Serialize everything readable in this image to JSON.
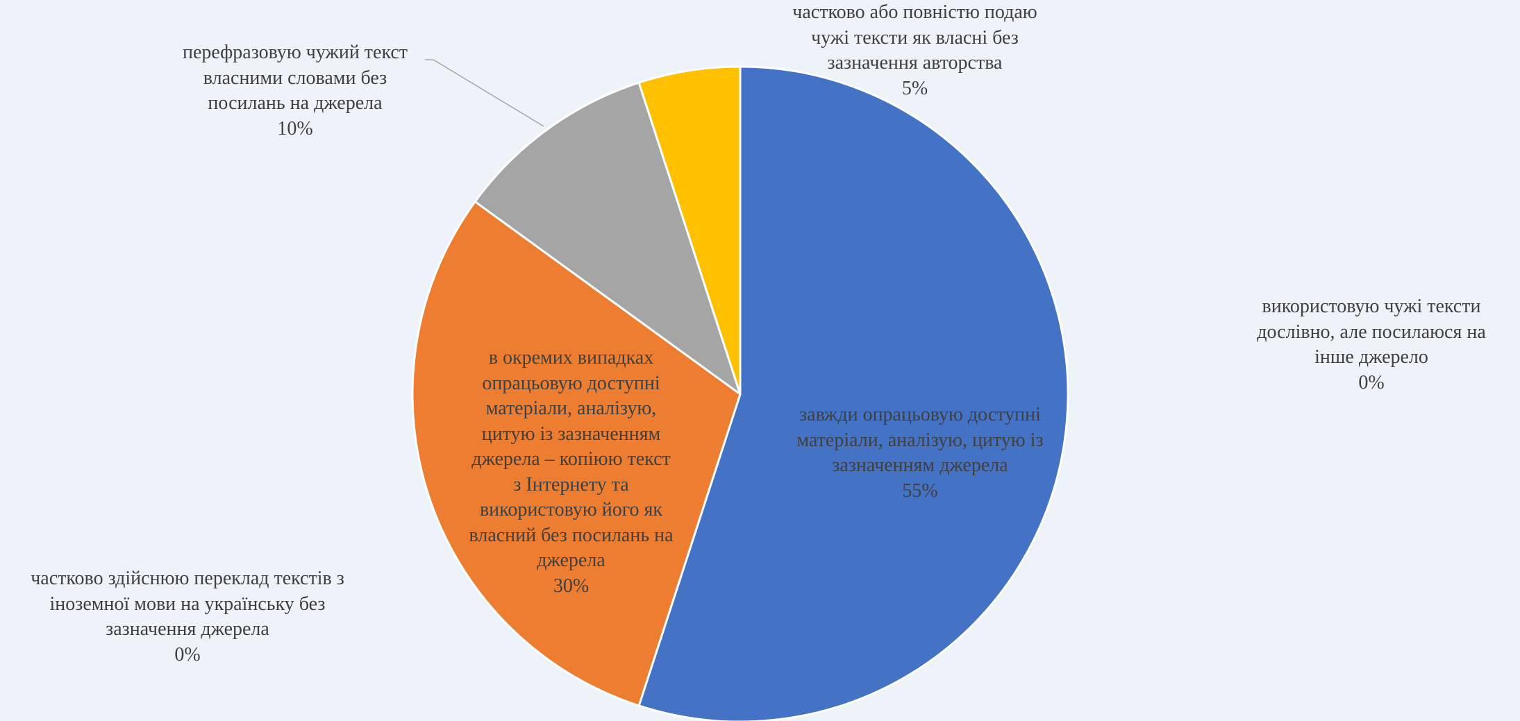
{
  "chart_data": {
    "type": "pie",
    "title": "",
    "slices": [
      {
        "label": "завжди опрацьовую доступні\nматеріали, аналізую, цитую із\nзазначенням джерела",
        "value": 55,
        "value_label": "55%",
        "color": "#4472c4"
      },
      {
        "label": "в окремих випадках\nопрацьовую доступні\nматеріали, аналізую,\nцитую із зазначенням\nджерела – копіюю текст\nз Інтернету та\nвикористовую його як\nвласний без посилань на\nджерела",
        "value": 30,
        "value_label": "30%",
        "color": "#ed7d31"
      },
      {
        "label": "перефразовую чужий текст\nвласними словами без\nпосилань на джерела",
        "value": 10,
        "value_label": "10%",
        "color": "#a5a5a5"
      },
      {
        "label": "частково або повністю подаю\nчужі тексти як власні без\nзазначення авторства",
        "value": 5,
        "value_label": "5%",
        "color": "#ffc000"
      },
      {
        "label": "використовую чужі тексти\nдослівно, але посилаюся на\nінше джерело",
        "value": 0,
        "value_label": "0%",
        "color": "#5b9bd5"
      },
      {
        "label": "частково здійснюю переклад текстів з\nіноземної мови на українську без\nзазначення джерела",
        "value": 0,
        "value_label": "0%",
        "color": "#70ad47"
      }
    ],
    "start_angle_deg": 0,
    "direction": "clockwise",
    "legend": "none",
    "data_labels": "category name and percentage"
  }
}
